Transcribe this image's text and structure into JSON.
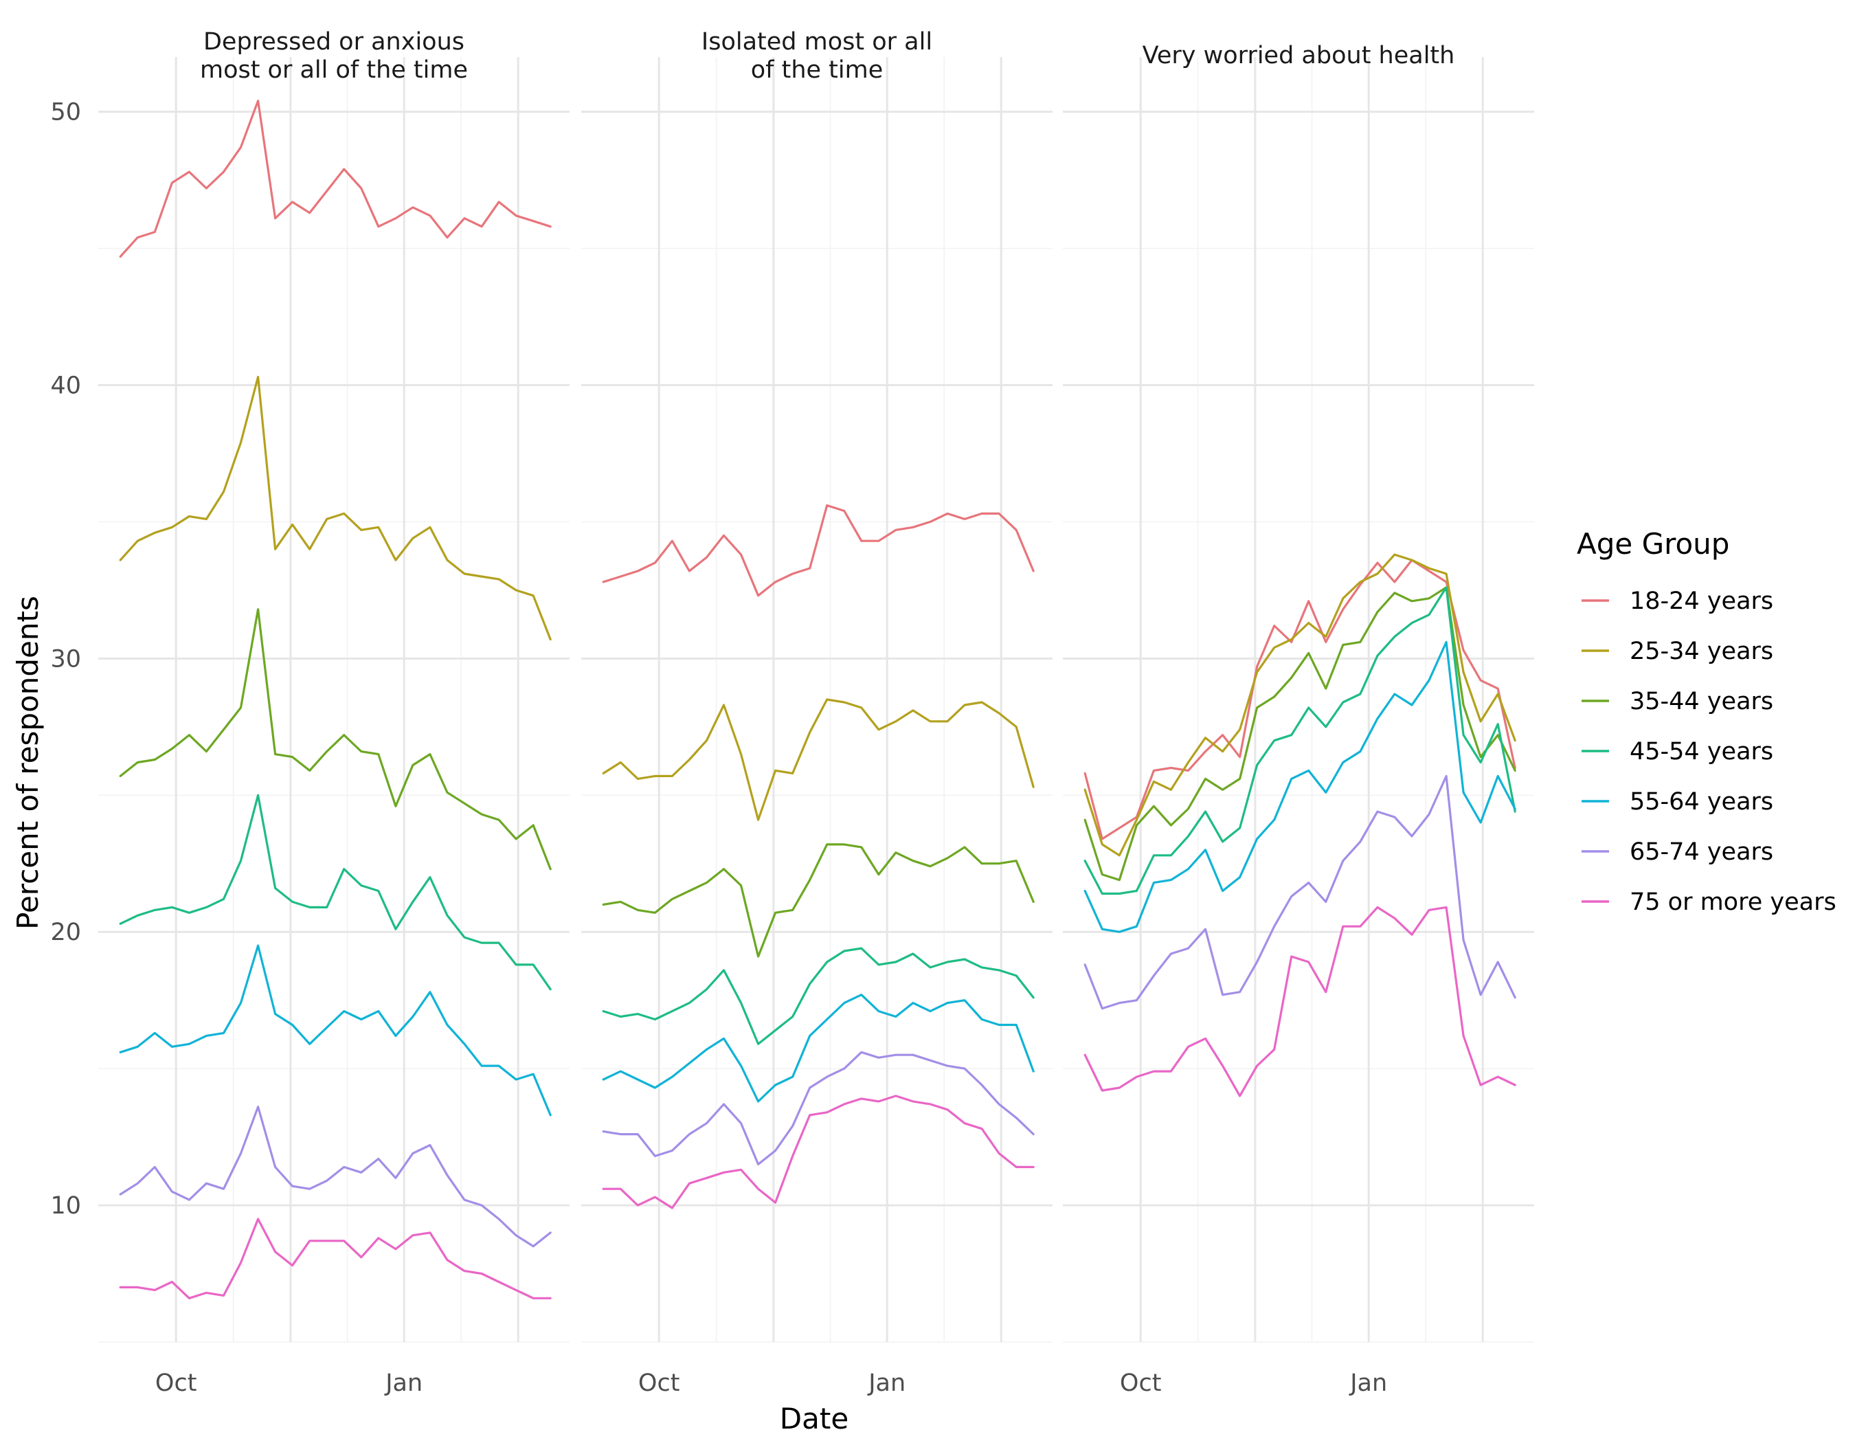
{
  "chart_data": {
    "type": "line",
    "facet_type": "small-multiples",
    "x_tick_labels": [
      "Oct",
      "Jan"
    ],
    "xlabel": "Date",
    "ylabel": "Percent of respondents",
    "ylim": [
      5,
      52
    ],
    "y_ticks": [
      10,
      20,
      30,
      40,
      50
    ],
    "grid": true,
    "legend": {
      "title": "Age Group",
      "position": "right",
      "entries": [
        "18-24 years",
        "25-34 years",
        "35-44 years",
        "45-54 years",
        "55-64 years",
        "65-74 years",
        "75 or more years"
      ],
      "colors": [
        "#e7757b",
        "#b3a11e",
        "#6da723",
        "#1ebc84",
        "#11b3d6",
        "#a38ee7",
        "#e966c6"
      ]
    },
    "panels": [
      {
        "title": "Depressed or anxious\nmost or all of the time",
        "series": [
          {
            "name": "18-24 years",
            "values": [
              44.7,
              45.4,
              45.6,
              47.4,
              47.8,
              47.2,
              47.8,
              48.7,
              50.4,
              46.1,
              46.7,
              46.3,
              47.1,
              47.9,
              47.2,
              45.8,
              46.1,
              46.5,
              46.2,
              45.4,
              46.1,
              45.8,
              46.7,
              46.2,
              46.0,
              45.8
            ]
          },
          {
            "name": "25-34 years",
            "values": [
              33.6,
              34.3,
              34.6,
              34.8,
              35.2,
              35.1,
              36.1,
              37.9,
              40.3,
              34.0,
              34.9,
              34.0,
              35.1,
              35.3,
              34.7,
              34.8,
              33.6,
              34.4,
              34.8,
              33.6,
              33.1,
              33.0,
              32.9,
              32.5,
              32.3,
              30.7
            ]
          },
          {
            "name": "35-44 years",
            "values": [
              25.7,
              26.2,
              26.3,
              26.7,
              27.2,
              26.6,
              27.4,
              28.2,
              31.8,
              26.5,
              26.4,
              25.9,
              26.6,
              27.2,
              26.6,
              26.5,
              24.6,
              26.1,
              26.5,
              25.1,
              24.7,
              24.3,
              24.1,
              23.4,
              23.9,
              22.3
            ]
          },
          {
            "name": "45-54 years",
            "values": [
              20.3,
              20.6,
              20.8,
              20.9,
              20.7,
              20.9,
              21.2,
              22.6,
              25.0,
              21.6,
              21.1,
              20.9,
              20.9,
              22.3,
              21.7,
              21.5,
              20.1,
              21.1,
              22.0,
              20.6,
              19.8,
              19.6,
              19.6,
              18.8,
              18.8,
              17.9
            ]
          },
          {
            "name": "55-64 years",
            "values": [
              15.6,
              15.8,
              16.3,
              15.8,
              15.9,
              16.2,
              16.3,
              17.4,
              19.5,
              17.0,
              16.6,
              15.9,
              16.5,
              17.1,
              16.8,
              17.1,
              16.2,
              16.9,
              17.8,
              16.6,
              15.9,
              15.1,
              15.1,
              14.6,
              14.8,
              13.3
            ]
          },
          {
            "name": "65-74 years",
            "values": [
              10.4,
              10.8,
              11.4,
              10.5,
              10.2,
              10.8,
              10.6,
              11.9,
              13.6,
              11.4,
              10.7,
              10.6,
              10.9,
              11.4,
              11.2,
              11.7,
              11.0,
              11.9,
              12.2,
              11.1,
              10.2,
              10.0,
              9.5,
              8.9,
              8.5,
              9.0
            ]
          },
          {
            "name": "75 or more years",
            "values": [
              7.0,
              7.0,
              6.9,
              7.2,
              6.6,
              6.8,
              6.7,
              7.9,
              9.5,
              8.3,
              7.8,
              8.7,
              8.7,
              8.7,
              8.1,
              8.8,
              8.4,
              8.9,
              9.0,
              8.0,
              7.6,
              7.5,
              7.2,
              6.9,
              6.6,
              6.6
            ]
          }
        ]
      },
      {
        "title": "Isolated most or all\nof the time",
        "series": [
          {
            "name": "18-24 years",
            "values": [
              32.8,
              33.0,
              33.2,
              33.5,
              34.3,
              33.2,
              33.7,
              34.5,
              33.8,
              32.3,
              32.8,
              33.1,
              33.3,
              35.6,
              35.4,
              34.3,
              34.3,
              34.7,
              34.8,
              35.0,
              35.3,
              35.1,
              35.3,
              35.3,
              34.7,
              33.2
            ]
          },
          {
            "name": "25-34 years",
            "values": [
              25.8,
              26.2,
              25.6,
              25.7,
              25.7,
              26.3,
              27.0,
              28.3,
              26.5,
              24.1,
              25.9,
              25.8,
              27.3,
              28.5,
              28.4,
              28.2,
              27.4,
              27.7,
              28.1,
              27.7,
              27.7,
              28.3,
              28.4,
              28.0,
              27.5,
              25.3
            ]
          },
          {
            "name": "35-44 years",
            "values": [
              21.0,
              21.1,
              20.8,
              20.7,
              21.2,
              21.5,
              21.8,
              22.3,
              21.7,
              19.1,
              20.7,
              20.8,
              21.9,
              23.2,
              23.2,
              23.1,
              22.1,
              22.9,
              22.6,
              22.4,
              22.7,
              23.1,
              22.5,
              22.5,
              22.6,
              21.1
            ]
          },
          {
            "name": "45-54 years",
            "values": [
              17.1,
              16.9,
              17.0,
              16.8,
              17.1,
              17.4,
              17.9,
              18.6,
              17.4,
              15.9,
              16.4,
              16.9,
              18.1,
              18.9,
              19.3,
              19.4,
              18.8,
              18.9,
              19.2,
              18.7,
              18.9,
              19.0,
              18.7,
              18.6,
              18.4,
              17.6
            ]
          },
          {
            "name": "55-64 years",
            "values": [
              14.6,
              14.9,
              14.6,
              14.3,
              14.7,
              15.2,
              15.7,
              16.1,
              15.1,
              13.8,
              14.4,
              14.7,
              16.2,
              16.8,
              17.4,
              17.7,
              17.1,
              16.9,
              17.4,
              17.1,
              17.4,
              17.5,
              16.8,
              16.6,
              16.6,
              14.9
            ]
          },
          {
            "name": "65-74 years",
            "values": [
              12.7,
              12.6,
              12.6,
              11.8,
              12.0,
              12.6,
              13.0,
              13.7,
              13.0,
              11.5,
              12.0,
              12.9,
              14.3,
              14.7,
              15.0,
              15.6,
              15.4,
              15.5,
              15.5,
              15.3,
              15.1,
              15.0,
              14.4,
              13.7,
              13.2,
              12.6
            ]
          },
          {
            "name": "75 or more years",
            "values": [
              10.6,
              10.6,
              10.0,
              10.3,
              9.9,
              10.8,
              11.0,
              11.2,
              11.3,
              10.6,
              10.1,
              11.8,
              13.3,
              13.4,
              13.7,
              13.9,
              13.8,
              14.0,
              13.8,
              13.7,
              13.5,
              13.0,
              12.8,
              11.9,
              11.4,
              11.4
            ]
          }
        ]
      },
      {
        "title": "Very worried about health",
        "series": [
          {
            "name": "18-24 years",
            "values": [
              25.8,
              23.4,
              23.8,
              24.2,
              25.9,
              26.0,
              25.9,
              26.6,
              27.2,
              26.4,
              29.7,
              31.2,
              30.6,
              32.1,
              30.6,
              31.8,
              32.7,
              33.5,
              32.8,
              33.6,
              33.2,
              32.8,
              30.3,
              29.2,
              28.9,
              26.0
            ]
          },
          {
            "name": "25-34 years",
            "values": [
              25.2,
              23.2,
              22.8,
              24.1,
              25.5,
              25.2,
              26.2,
              27.1,
              26.6,
              27.4,
              29.5,
              30.4,
              30.7,
              31.3,
              30.8,
              32.2,
              32.8,
              33.1,
              33.8,
              33.6,
              33.3,
              33.1,
              29.5,
              27.7,
              28.7,
              27.0
            ]
          },
          {
            "name": "35-44 years",
            "values": [
              24.1,
              22.1,
              21.9,
              23.9,
              24.6,
              23.9,
              24.5,
              25.6,
              25.2,
              25.6,
              28.2,
              28.6,
              29.3,
              30.2,
              28.9,
              30.5,
              30.6,
              31.7,
              32.4,
              32.1,
              32.2,
              32.6,
              28.3,
              26.4,
              27.2,
              25.9
            ]
          },
          {
            "name": "45-54 years",
            "values": [
              22.6,
              21.4,
              21.4,
              21.5,
              22.8,
              22.8,
              23.5,
              24.4,
              23.3,
              23.8,
              26.1,
              27.0,
              27.2,
              28.2,
              27.5,
              28.4,
              28.7,
              30.1,
              30.8,
              31.3,
              31.6,
              32.6,
              27.2,
              26.2,
              27.6,
              24.4
            ]
          },
          {
            "name": "55-64 years",
            "values": [
              21.5,
              20.1,
              20.0,
              20.2,
              21.8,
              21.9,
              22.3,
              23.0,
              21.5,
              22.0,
              23.4,
              24.1,
              25.6,
              25.9,
              25.1,
              26.2,
              26.6,
              27.8,
              28.7,
              28.3,
              29.2,
              30.6,
              25.1,
              24.0,
              25.7,
              24.5
            ]
          },
          {
            "name": "65-74 years",
            "values": [
              18.8,
              17.2,
              17.4,
              17.5,
              18.4,
              19.2,
              19.4,
              20.1,
              17.7,
              17.8,
              18.9,
              20.2,
              21.3,
              21.8,
              21.1,
              22.6,
              23.3,
              24.4,
              24.2,
              23.5,
              24.3,
              25.7,
              19.7,
              17.7,
              18.9,
              17.6
            ]
          },
          {
            "name": "75 or more years",
            "values": [
              15.5,
              14.2,
              14.3,
              14.7,
              14.9,
              14.9,
              15.8,
              16.1,
              15.1,
              14.0,
              15.1,
              15.7,
              19.1,
              18.9,
              17.8,
              20.2,
              20.2,
              20.9,
              20.5,
              19.9,
              20.8,
              20.9,
              16.2,
              14.4,
              14.7,
              14.4
            ]
          }
        ]
      }
    ]
  }
}
